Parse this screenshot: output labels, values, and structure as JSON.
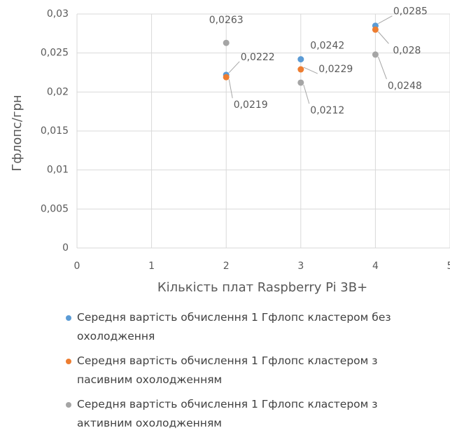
{
  "chart_data": {
    "type": "scatter",
    "x_label": "Кількість плат Raspberry Pi 3B+",
    "y_label": "Гфлопс/грн",
    "x": [
      2,
      3,
      4
    ],
    "series": [
      {
        "name": "Середня вартість обчислення 1 Гфлопс кластером без охолодження",
        "color": "#5b9bd5",
        "values": [
          0.0222,
          0.0242,
          0.0285
        ],
        "value_labels": [
          "0,0222",
          "0,0242",
          "0,0285"
        ]
      },
      {
        "name": "Середня вартість обчислення 1 Гфлопс кластером з пасивним охолодженням",
        "color": "#ed7d31",
        "values": [
          0.0219,
          0.0229,
          0.028
        ],
        "value_labels": [
          "0,0219",
          "0,0229",
          "0,028"
        ]
      },
      {
        "name": "Середня вартість обчислення 1 Гфлопс кластером з активним охолодженням",
        "color": "#a5a5a5",
        "values": [
          0.0263,
          0.0212,
          0.0248
        ],
        "value_labels": [
          "0,0263",
          "0,0212",
          "0,0248"
        ]
      }
    ],
    "xlim": [
      0,
      5
    ],
    "xticks": [
      0,
      1,
      2,
      3,
      4,
      5
    ],
    "ylim": [
      0,
      0.03
    ],
    "yticks": [
      0,
      {
        "value": 0.005,
        "label": "0,005"
      },
      {
        "value": 0.01,
        "label": "0,01"
      },
      {
        "value": 0.015,
        "label": "0,015"
      },
      {
        "value": 0.02,
        "label": "0,02"
      },
      {
        "value": 0.025,
        "label": "0,025"
      },
      {
        "value": 0.03,
        "label": "0,03"
      }
    ],
    "grid": true,
    "legend": "bottom"
  }
}
